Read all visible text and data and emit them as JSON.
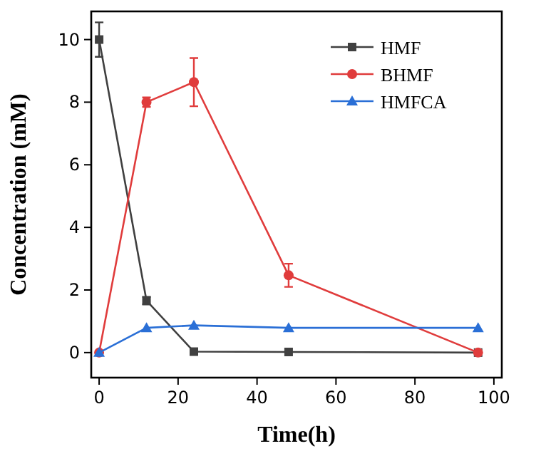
{
  "chart_data": {
    "type": "line",
    "xlabel": "Time(h)",
    "ylabel": "Concentration (mM)",
    "x": [
      0,
      12,
      24,
      48,
      96
    ],
    "series": [
      {
        "name": "HMF",
        "color": "#404040",
        "marker": "square",
        "values": [
          10.0,
          1.66,
          0.03,
          0.02,
          0
        ],
        "errors": [
          0.55,
          0.12,
          null,
          null,
          null
        ]
      },
      {
        "name": "BHMF",
        "color": "#e03c3c",
        "marker": "circle",
        "values": [
          0,
          8.0,
          8.64,
          2.47,
          0
        ],
        "errors": [
          null,
          0.15,
          0.77,
          0.37,
          null
        ]
      },
      {
        "name": "HMFCA",
        "color": "#2a6fd6",
        "marker": "triangle",
        "values": [
          0,
          0.79,
          0.87,
          0.79,
          0.79
        ]
      }
    ],
    "xlim": [
      -2,
      102
    ],
    "ylim": [
      -0.8,
      10.9
    ],
    "xticks": [
      0,
      20,
      40,
      60,
      80,
      100
    ],
    "yticks": [
      0,
      2,
      4,
      6,
      8,
      10
    ],
    "grid": false,
    "legend": "top right",
    "line_style": "solid"
  }
}
